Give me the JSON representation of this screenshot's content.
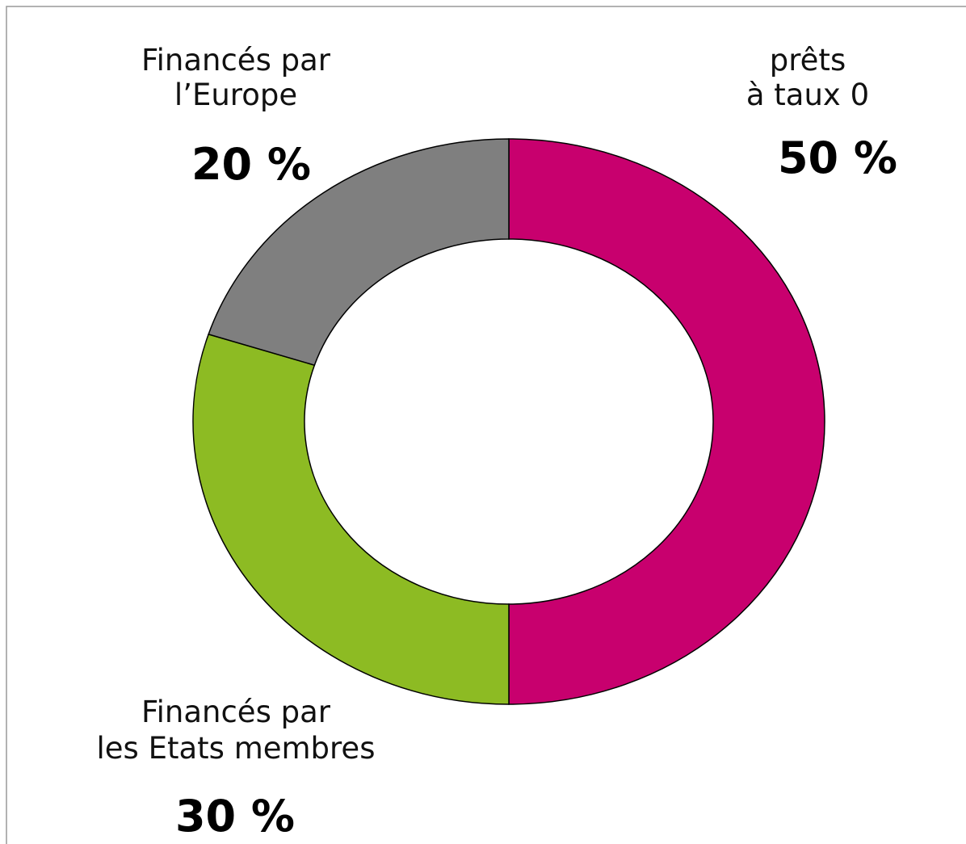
{
  "chart_data": {
    "type": "donut",
    "categories": [
      [
        "prêts",
        "à taux 0"
      ],
      [
        "Financés par",
        "les Etats membres"
      ],
      [
        "Financés par",
        "l’Europe"
      ]
    ],
    "values": [
      50,
      30,
      20
    ],
    "value_labels": [
      "50 %",
      "30 %",
      "20 %"
    ],
    "colors": [
      "#c8006e",
      "#8dbb23",
      "#7f7f7f"
    ]
  }
}
